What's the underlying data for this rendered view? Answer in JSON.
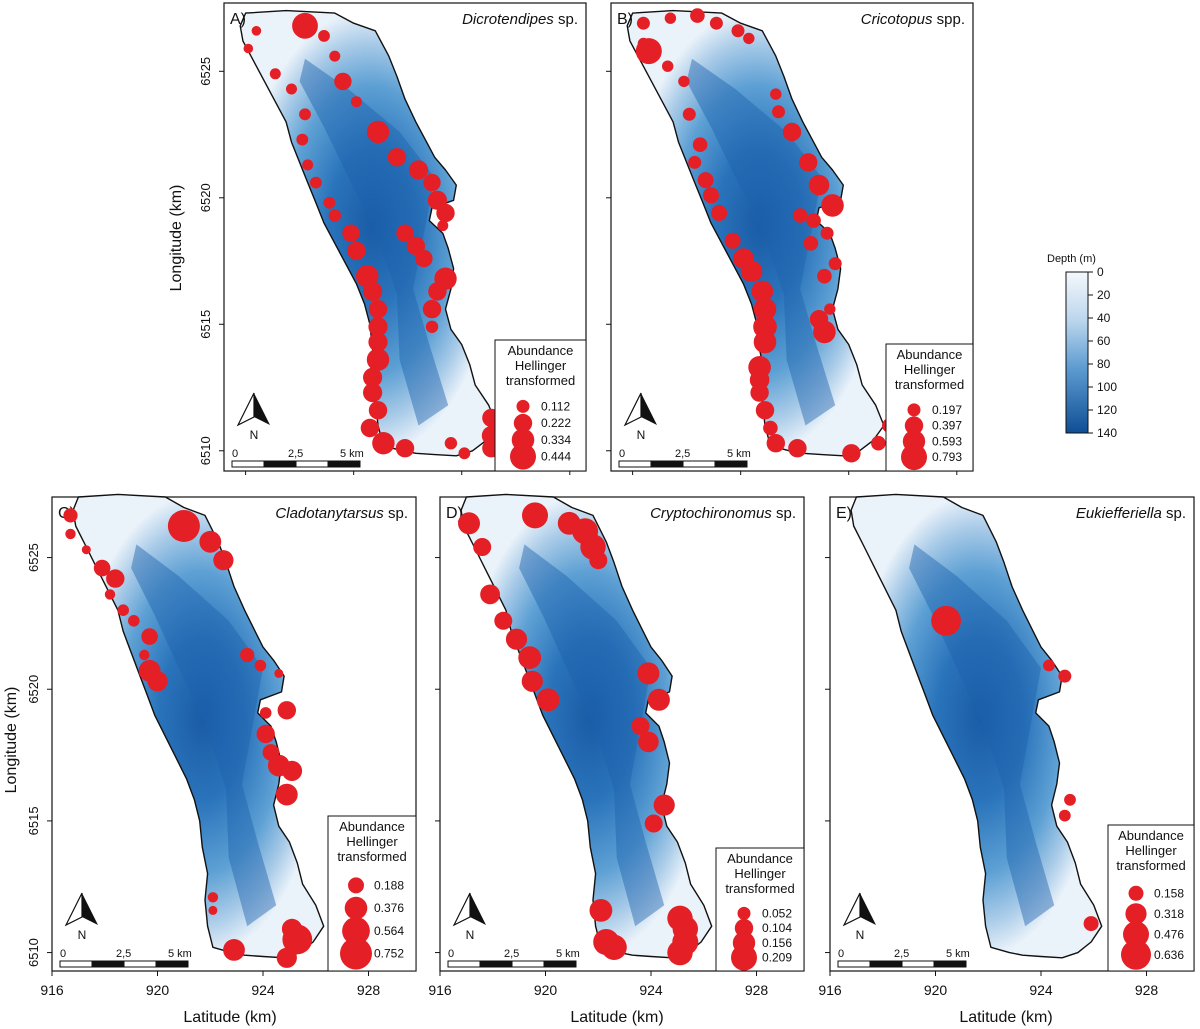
{
  "colors": {
    "point": "#e41f26",
    "outline": "#111111",
    "depth_deep": "#1156a4",
    "depth_shallow": "#eef3fa"
  },
  "axes": {
    "y_label": "Longitude (km)",
    "x_label": "Latitude (km)",
    "y_ticks": [
      "6510",
      "6515",
      "6520",
      "6525"
    ],
    "x_ticks": [
      "916",
      "920",
      "924",
      "928"
    ]
  },
  "scale_bar": {
    "labels": [
      "0",
      "2,5",
      "5 km"
    ]
  },
  "north_arrow": {
    "label": "N"
  },
  "depth_legend": {
    "title": "Depth (m)",
    "ticks": [
      "0",
      "20",
      "40",
      "60",
      "80",
      "100",
      "120",
      "140"
    ]
  },
  "legend_title": [
    "Abundance",
    "Hellinger",
    "transformed"
  ],
  "panels": [
    {
      "letter": "A)",
      "taxon": "Dicrotendipes",
      "suffix": " sp.",
      "legend_values": [
        "0.112",
        "0.222",
        "0.334",
        "0.444"
      ],
      "points": [
        [
          917.4,
          6526.6,
          0.06
        ],
        [
          919.2,
          6526.8,
          0.44
        ],
        [
          919.9,
          6526.4,
          0.09
        ],
        [
          917.1,
          6525.9,
          0.06
        ],
        [
          920.3,
          6525.6,
          0.08
        ],
        [
          920.6,
          6524.6,
          0.2
        ],
        [
          918.1,
          6524.9,
          0.08
        ],
        [
          918.7,
          6524.3,
          0.08
        ],
        [
          921.1,
          6523.8,
          0.08
        ],
        [
          919.2,
          6523.3,
          0.09
        ],
        [
          921.9,
          6522.6,
          0.33
        ],
        [
          919.1,
          6522.3,
          0.09
        ],
        [
          922.6,
          6521.6,
          0.22
        ],
        [
          919.3,
          6521.3,
          0.08
        ],
        [
          923.4,
          6521.1,
          0.24
        ],
        [
          923.9,
          6520.6,
          0.2
        ],
        [
          919.6,
          6520.6,
          0.09
        ],
        [
          924.1,
          6519.9,
          0.24
        ],
        [
          920.1,
          6519.8,
          0.09
        ],
        [
          924.4,
          6519.4,
          0.22
        ],
        [
          920.3,
          6519.3,
          0.1
        ],
        [
          924.3,
          6518.9,
          0.08
        ],
        [
          920.9,
          6518.6,
          0.2
        ],
        [
          922.9,
          6518.6,
          0.2
        ],
        [
          923.3,
          6518.1,
          0.22
        ],
        [
          921.1,
          6517.9,
          0.22
        ],
        [
          923.6,
          6517.6,
          0.2
        ],
        [
          921.5,
          6516.9,
          0.33
        ],
        [
          924.4,
          6516.8,
          0.33
        ],
        [
          921.7,
          6516.3,
          0.24
        ],
        [
          924.1,
          6516.3,
          0.22
        ],
        [
          921.9,
          6515.6,
          0.22
        ],
        [
          923.9,
          6515.6,
          0.22
        ],
        [
          921.9,
          6514.9,
          0.24
        ],
        [
          923.9,
          6514.9,
          0.1
        ],
        [
          921.9,
          6514.3,
          0.24
        ],
        [
          921.9,
          6513.6,
          0.33
        ],
        [
          921.7,
          6512.9,
          0.24
        ],
        [
          921.7,
          6512.3,
          0.24
        ],
        [
          921.9,
          6511.6,
          0.22
        ],
        [
          926.1,
          6511.3,
          0.22
        ],
        [
          921.6,
          6510.9,
          0.22
        ],
        [
          926.1,
          6510.6,
          0.24
        ],
        [
          922.1,
          6510.3,
          0.33
        ],
        [
          924.6,
          6510.3,
          0.1
        ],
        [
          922.9,
          6510.1,
          0.22
        ],
        [
          926.1,
          6510.1,
          0.22
        ],
        [
          925.1,
          6509.9,
          0.09
        ]
      ]
    },
    {
      "letter": "B)",
      "taxon": "Cricotopus",
      "suffix": " spp.",
      "legend_values": [
        "0.197",
        "0.397",
        "0.593",
        "0.793"
      ],
      "points": [
        [
          917.4,
          6526.9,
          0.2
        ],
        [
          918.4,
          6527.1,
          0.15
        ],
        [
          919.4,
          6527.2,
          0.25
        ],
        [
          920.1,
          6526.9,
          0.2
        ],
        [
          920.9,
          6526.6,
          0.2
        ],
        [
          921.3,
          6526.3,
          0.15
        ],
        [
          917.4,
          6526.1,
          0.15
        ],
        [
          917.6,
          6525.8,
          0.79
        ],
        [
          918.3,
          6525.2,
          0.15
        ],
        [
          918.9,
          6524.6,
          0.15
        ],
        [
          922.3,
          6524.1,
          0.15
        ],
        [
          922.4,
          6523.4,
          0.2
        ],
        [
          919.1,
          6523.3,
          0.2
        ],
        [
          922.9,
          6522.6,
          0.4
        ],
        [
          919.5,
          6522.1,
          0.25
        ],
        [
          919.3,
          6521.4,
          0.2
        ],
        [
          923.5,
          6521.4,
          0.4
        ],
        [
          919.7,
          6520.7,
          0.3
        ],
        [
          923.9,
          6520.5,
          0.5
        ],
        [
          919.9,
          6520.1,
          0.3
        ],
        [
          924.4,
          6519.7,
          0.6
        ],
        [
          920.2,
          6519.4,
          0.3
        ],
        [
          923.2,
          6519.3,
          0.25
        ],
        [
          923.7,
          6519.1,
          0.25
        ],
        [
          924.2,
          6518.6,
          0.2
        ],
        [
          920.7,
          6518.3,
          0.3
        ],
        [
          923.6,
          6518.2,
          0.25
        ],
        [
          921.1,
          6517.6,
          0.5
        ],
        [
          924.5,
          6517.4,
          0.2
        ],
        [
          921.4,
          6517.1,
          0.55
        ],
        [
          924.1,
          6516.9,
          0.25
        ],
        [
          921.8,
          6516.3,
          0.55
        ],
        [
          924.3,
          6515.6,
          0.15
        ],
        [
          921.9,
          6515.6,
          0.6
        ],
        [
          923.9,
          6515.2,
          0.4
        ],
        [
          921.9,
          6514.9,
          0.65
        ],
        [
          924.1,
          6514.7,
          0.6
        ],
        [
          921.9,
          6514.3,
          0.6
        ],
        [
          921.7,
          6513.3,
          0.6
        ],
        [
          921.7,
          6512.8,
          0.45
        ],
        [
          921.7,
          6512.3,
          0.4
        ],
        [
          921.9,
          6511.6,
          0.4
        ],
        [
          926.5,
          6511.0,
          0.25
        ],
        [
          922.1,
          6510.9,
          0.25
        ],
        [
          922.3,
          6510.3,
          0.4
        ],
        [
          923.1,
          6510.1,
          0.4
        ],
        [
          925.1,
          6509.9,
          0.4
        ],
        [
          926.1,
          6510.3,
          0.25
        ]
      ]
    },
    {
      "letter": "C)",
      "taxon": "Cladotanytarsus",
      "suffix": " sp.",
      "legend_values": [
        "0.188",
        "0.376",
        "0.564",
        "0.752"
      ],
      "points": [
        [
          916.7,
          6526.6,
          0.15
        ],
        [
          921.0,
          6526.2,
          0.75
        ],
        [
          916.7,
          6525.9,
          0.08
        ],
        [
          922.0,
          6525.6,
          0.35
        ],
        [
          917.3,
          6525.3,
          0.06
        ],
        [
          922.5,
          6524.9,
          0.3
        ],
        [
          917.9,
          6524.6,
          0.2
        ],
        [
          918.4,
          6524.2,
          0.25
        ],
        [
          918.2,
          6523.6,
          0.08
        ],
        [
          918.7,
          6523.0,
          0.1
        ],
        [
          919.1,
          6522.6,
          0.1
        ],
        [
          919.7,
          6522.0,
          0.2
        ],
        [
          919.5,
          6521.3,
          0.08
        ],
        [
          923.4,
          6521.3,
          0.15
        ],
        [
          919.7,
          6520.7,
          0.35
        ],
        [
          923.9,
          6520.9,
          0.1
        ],
        [
          920.0,
          6520.3,
          0.3
        ],
        [
          924.6,
          6520.6,
          0.06
        ],
        [
          924.1,
          6519.1,
          0.1
        ],
        [
          924.9,
          6519.2,
          0.25
        ],
        [
          924.1,
          6518.3,
          0.25
        ],
        [
          924.3,
          6517.6,
          0.2
        ],
        [
          924.6,
          6517.1,
          0.35
        ],
        [
          925.1,
          6516.9,
          0.3
        ],
        [
          924.9,
          6516.0,
          0.35
        ],
        [
          922.1,
          6512.1,
          0.08
        ],
        [
          922.1,
          6511.6,
          0.06
        ],
        [
          925.1,
          6510.9,
          0.3
        ],
        [
          925.3,
          6510.5,
          0.65
        ],
        [
          922.9,
          6510.1,
          0.35
        ],
        [
          924.9,
          6509.8,
          0.3
        ]
      ]
    },
    {
      "letter": "D)",
      "taxon": "Cryptochironomus",
      "suffix": " sp.",
      "legend_values": [
        "0.052",
        "0.104",
        "0.156",
        "0.209"
      ],
      "points": [
        [
          917.1,
          6526.3,
          0.15
        ],
        [
          919.6,
          6526.6,
          0.21
        ],
        [
          920.9,
          6526.3,
          0.16
        ],
        [
          921.5,
          6526.0,
          0.21
        ],
        [
          921.8,
          6525.4,
          0.2
        ],
        [
          917.6,
          6525.4,
          0.1
        ],
        [
          922.0,
          6524.9,
          0.1
        ],
        [
          917.9,
          6523.6,
          0.12
        ],
        [
          918.4,
          6522.6,
          0.1
        ],
        [
          918.9,
          6521.9,
          0.14
        ],
        [
          919.4,
          6521.2,
          0.16
        ],
        [
          923.9,
          6520.6,
          0.15
        ],
        [
          919.5,
          6520.3,
          0.14
        ],
        [
          920.1,
          6519.6,
          0.16
        ],
        [
          924.3,
          6519.6,
          0.15
        ],
        [
          923.6,
          6518.6,
          0.1
        ],
        [
          923.9,
          6518.0,
          0.13
        ],
        [
          924.5,
          6515.6,
          0.14
        ],
        [
          924.1,
          6514.9,
          0.1
        ],
        [
          922.1,
          6511.6,
          0.16
        ],
        [
          925.1,
          6511.3,
          0.2
        ],
        [
          925.3,
          6510.9,
          0.2
        ],
        [
          922.3,
          6510.4,
          0.21
        ],
        [
          922.6,
          6510.2,
          0.2
        ],
        [
          925.3,
          6510.4,
          0.21
        ],
        [
          925.1,
          6510.0,
          0.2
        ]
      ]
    },
    {
      "letter": "E)",
      "taxon": "Eukiefferiella",
      "suffix": " sp.",
      "legend_values": [
        "0.158",
        "0.318",
        "0.476",
        "0.636"
      ],
      "points": [
        [
          920.4,
          6522.6,
          0.63
        ],
        [
          924.3,
          6520.9,
          0.1
        ],
        [
          924.9,
          6520.5,
          0.12
        ],
        [
          925.1,
          6515.8,
          0.1
        ],
        [
          924.9,
          6515.2,
          0.1
        ],
        [
          925.9,
          6511.1,
          0.16
        ]
      ]
    }
  ]
}
